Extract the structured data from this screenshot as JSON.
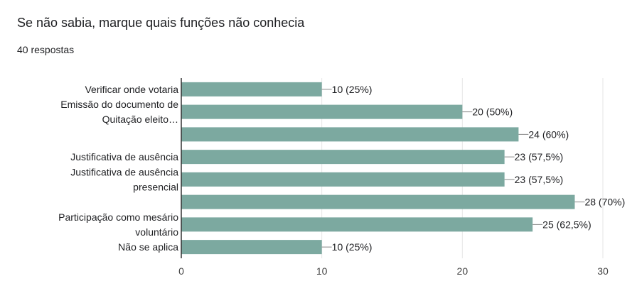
{
  "question": {
    "title": "Se não sabia, marque quais funções não conhecia",
    "responses": "40 respostas"
  },
  "colors": {
    "bar": "#7ca9a0",
    "grid": "#e6e6e6",
    "axis": "#333333",
    "text": "#202124"
  },
  "chart_data": {
    "type": "bar",
    "orientation": "horizontal",
    "categories": [
      [
        "Verificar onde votaria"
      ],
      [
        "Emissão do documento de",
        "Quitação eleito…"
      ],
      [],
      [
        "Justificativa de ausência"
      ],
      [
        "Justificativa de ausência",
        "presencial"
      ],
      [],
      [
        "Participação como mesário",
        "voluntário"
      ],
      [
        "Não se aplica"
      ]
    ],
    "values": [
      10,
      20,
      24,
      23,
      23,
      28,
      25,
      10
    ],
    "data_labels": [
      "10 (25%)",
      "20 (50%)",
      "24 (60%)",
      "23 (57,5%)",
      "23 (57,5%)",
      "28 (70%)",
      "25 (62,5%)",
      "10 (25%)"
    ],
    "xlim": [
      0,
      30
    ],
    "xticks": [
      "0",
      "10",
      "20",
      "30"
    ],
    "grid": true
  }
}
